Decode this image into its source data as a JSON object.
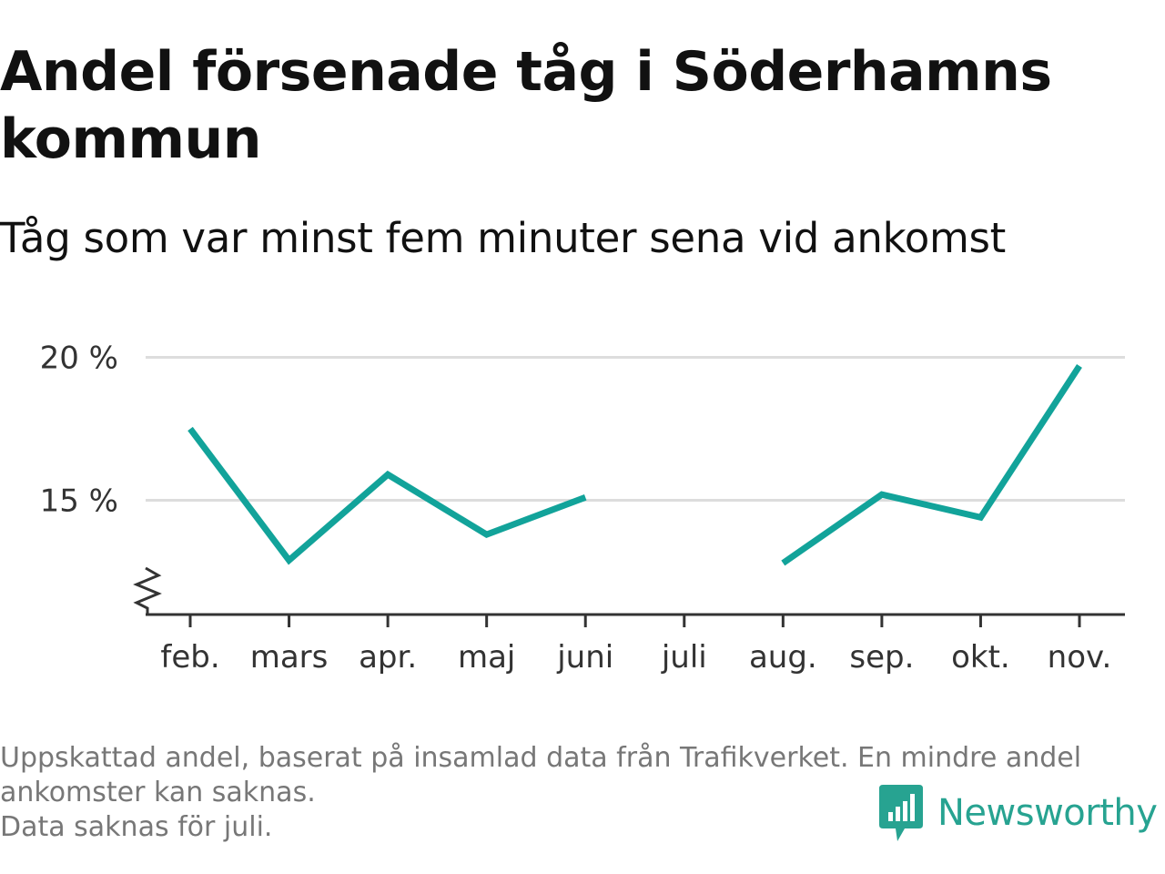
{
  "chart_data": {
    "type": "line",
    "title": "Andel försenade tåg i Söderhamns kommun",
    "subtitle": "Tåg som var minst fem minuter sena vid ankomst",
    "categories": [
      "feb.",
      "mars",
      "apr.",
      "maj",
      "juni",
      "juli",
      "aug.",
      "sep.",
      "okt.",
      "nov."
    ],
    "series": [
      {
        "values": [
          17.5,
          12.9,
          15.9,
          13.8,
          15.1,
          null,
          12.8,
          15.2,
          14.4,
          19.7
        ]
      }
    ],
    "yticks": [
      15,
      20
    ],
    "ytick_labels": [
      "15 %",
      "20 %"
    ],
    "ylim": [
      11.0,
      20.4
    ],
    "grid": true,
    "axis_break": true,
    "line_color": "#12a39a"
  },
  "footnote": {
    "lines": [
      "Uppskattad andel, baserat på insamlad data från Trafikverket. En mindre andel",
      "ankomster kan saknas.",
      "Data saknas för juli."
    ]
  },
  "brand": {
    "name": "Newsworthy",
    "color": "#27a391"
  }
}
